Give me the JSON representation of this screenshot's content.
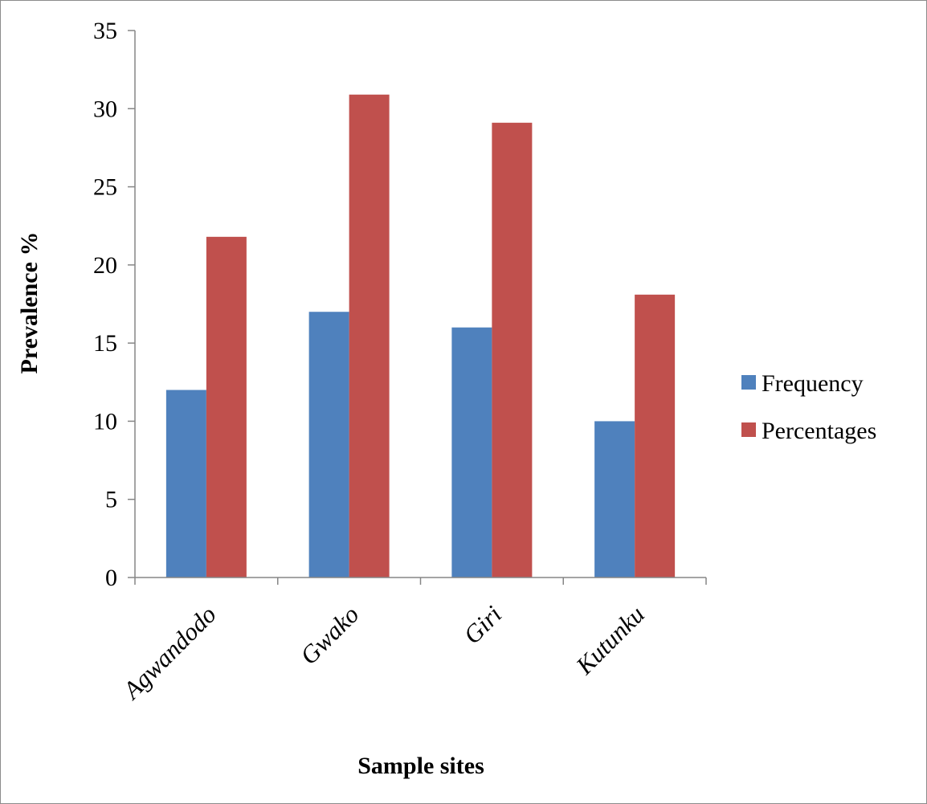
{
  "chart_data": {
    "type": "bar",
    "title": "",
    "xlabel": "Sample sites",
    "ylabel": "Prevalence %",
    "categories": [
      "Agwandodo",
      "Gwako",
      "Giri",
      "Kutunku"
    ],
    "series": [
      {
        "name": "Frequency",
        "color": "#4f81bd",
        "values": [
          12,
          17,
          16,
          10
        ]
      },
      {
        "name": "Percentages",
        "color": "#c0504d",
        "values": [
          21.8,
          30.9,
          29.1,
          18.1
        ]
      }
    ],
    "ylim": [
      0,
      35
    ],
    "yticks": [
      0,
      5,
      10,
      15,
      20,
      25,
      30,
      35
    ],
    "grid": false,
    "legend_position": "right"
  }
}
